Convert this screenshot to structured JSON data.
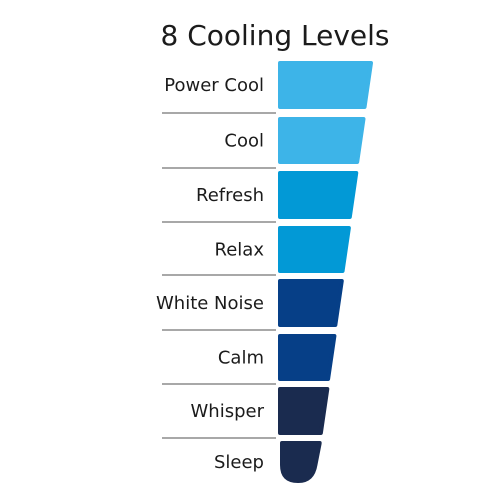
{
  "title": "8 Cooling Levels",
  "levels": [
    {
      "label": "Power Cool"
    },
    {
      "label": "Cool"
    },
    {
      "label": "Refresh"
    },
    {
      "label": "Relax"
    },
    {
      "label": "White Noise"
    },
    {
      "label": "Calm"
    },
    {
      "label": "Whisper"
    },
    {
      "label": "Sleep"
    }
  ]
}
